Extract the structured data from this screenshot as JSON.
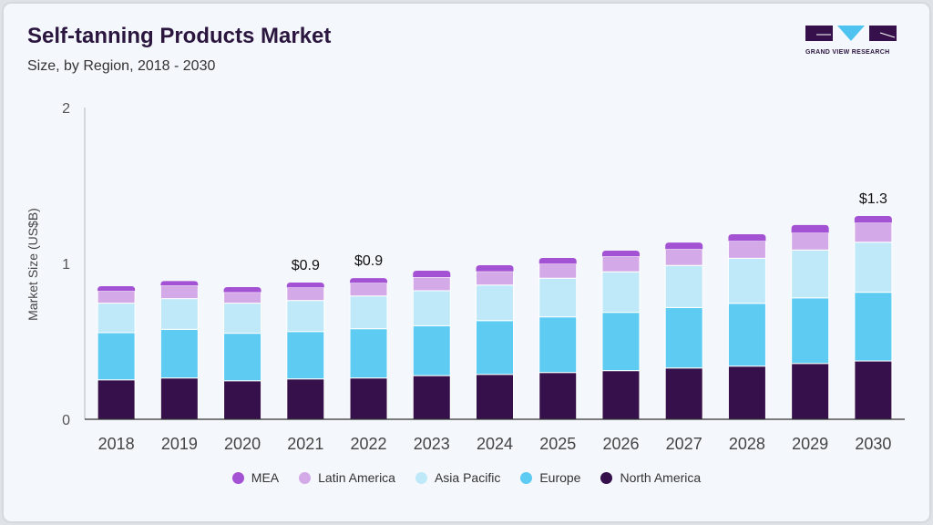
{
  "header": {
    "title": "Self-tanning Products Market",
    "subtitle": "Size, by Region, 2018 - 2030"
  },
  "logo": {
    "text": "GRAND VIEW RESEARCH"
  },
  "chart_data": {
    "type": "bar",
    "stacked": true,
    "title": "Self-tanning Products Market",
    "subtitle": "Size, by Region, 2018 - 2030",
    "xlabel": "",
    "ylabel": "Market Size (US$B)",
    "ylim": [
      0,
      2
    ],
    "yticks": [
      "0",
      "1",
      "2"
    ],
    "grid": false,
    "legend_position": "bottom",
    "categories": [
      "2018",
      "2019",
      "2020",
      "2021",
      "2022",
      "2023",
      "2024",
      "2025",
      "2026",
      "2027",
      "2028",
      "2029",
      "2030"
    ],
    "series": [
      {
        "name": "North America",
        "color": "#36104a",
        "values": [
          0.253,
          0.265,
          0.247,
          0.259,
          0.265,
          0.28,
          0.288,
          0.3,
          0.312,
          0.329,
          0.341,
          0.358,
          0.374
        ]
      },
      {
        "name": "Europe",
        "color": "#5ecbf3",
        "values": [
          0.303,
          0.312,
          0.305,
          0.304,
          0.316,
          0.32,
          0.345,
          0.357,
          0.374,
          0.388,
          0.403,
          0.421,
          0.441
        ]
      },
      {
        "name": "Asia Pacific",
        "color": "#bfe9f8",
        "values": [
          0.189,
          0.197,
          0.193,
          0.199,
          0.21,
          0.225,
          0.228,
          0.248,
          0.26,
          0.27,
          0.289,
          0.307,
          0.321
        ]
      },
      {
        "name": "Latin America",
        "color": "#d4a9e8",
        "values": [
          0.078,
          0.084,
          0.07,
          0.084,
          0.084,
          0.087,
          0.088,
          0.093,
          0.099,
          0.105,
          0.111,
          0.111,
          0.125
        ]
      },
      {
        "name": "MEA",
        "color": "#a452d4",
        "values": [
          0.031,
          0.029,
          0.033,
          0.031,
          0.031,
          0.041,
          0.039,
          0.037,
          0.037,
          0.042,
          0.043,
          0.049,
          0.043
        ]
      }
    ],
    "annotations": [
      {
        "category": "2021",
        "text": "$0.9"
      },
      {
        "category": "2022",
        "text": "$0.9"
      },
      {
        "category": "2030",
        "text": "$1.3"
      }
    ],
    "legend_order": [
      "MEA",
      "Latin America",
      "Asia Pacific",
      "Europe",
      "North America"
    ]
  }
}
